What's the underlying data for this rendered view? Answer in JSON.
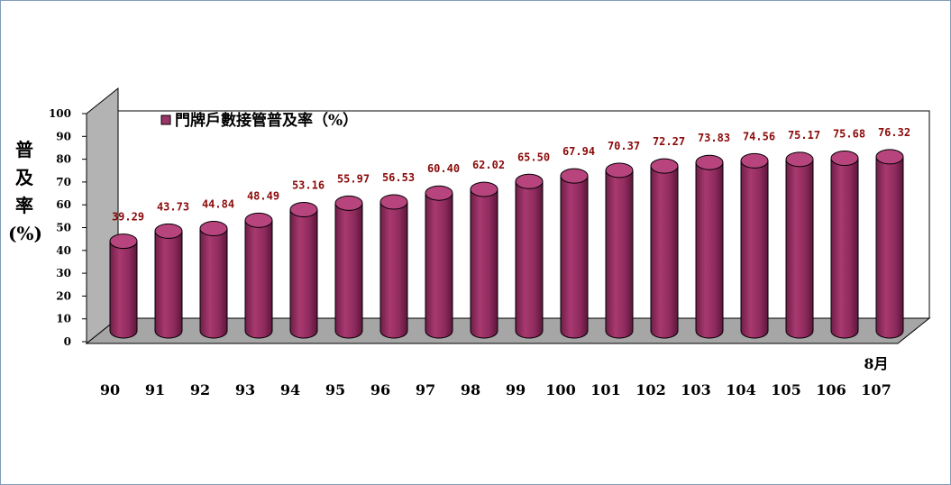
{
  "chart_data": {
    "type": "bar",
    "style": "3d-cylinder",
    "ylabel": "普\n及\n率\n(%)",
    "ylim": [
      0,
      100
    ],
    "yticks": [
      0,
      10,
      20,
      30,
      40,
      50,
      60,
      70,
      80,
      90,
      100
    ],
    "categories": [
      "90",
      "91",
      "92",
      "93",
      "94",
      "95",
      "96",
      "97",
      "98",
      "99",
      "100",
      "101",
      "102",
      "103",
      "104",
      "105",
      "106",
      "107"
    ],
    "category_note": {
      "category": "107",
      "text": "8月"
    },
    "series": [
      {
        "name": "門牌戶數接管普及率（%）",
        "color": "#9b3468",
        "values": [
          39.29,
          43.73,
          44.84,
          48.49,
          53.16,
          55.97,
          56.53,
          60.4,
          62.02,
          65.5,
          67.94,
          70.37,
          72.27,
          73.83,
          74.56,
          75.17,
          75.68,
          76.32
        ]
      }
    ],
    "data_labels": [
      "39.29",
      "43.73",
      "44.84",
      "48.49",
      "53.16",
      "55.97",
      "56.53",
      "60.40",
      "62.02",
      "65.50",
      "67.94",
      "70.37",
      "72.27",
      "73.83",
      "74.56",
      "75.17",
      "75.68",
      "76.32"
    ],
    "legend_position": "top-left",
    "grid": false,
    "colors": {
      "bar": "#9b3468",
      "bar_top": "#b8447e",
      "floor": "#a6a6a6",
      "side_wall": "#b3b3b3",
      "data_label": "#8b0a0a"
    }
  }
}
